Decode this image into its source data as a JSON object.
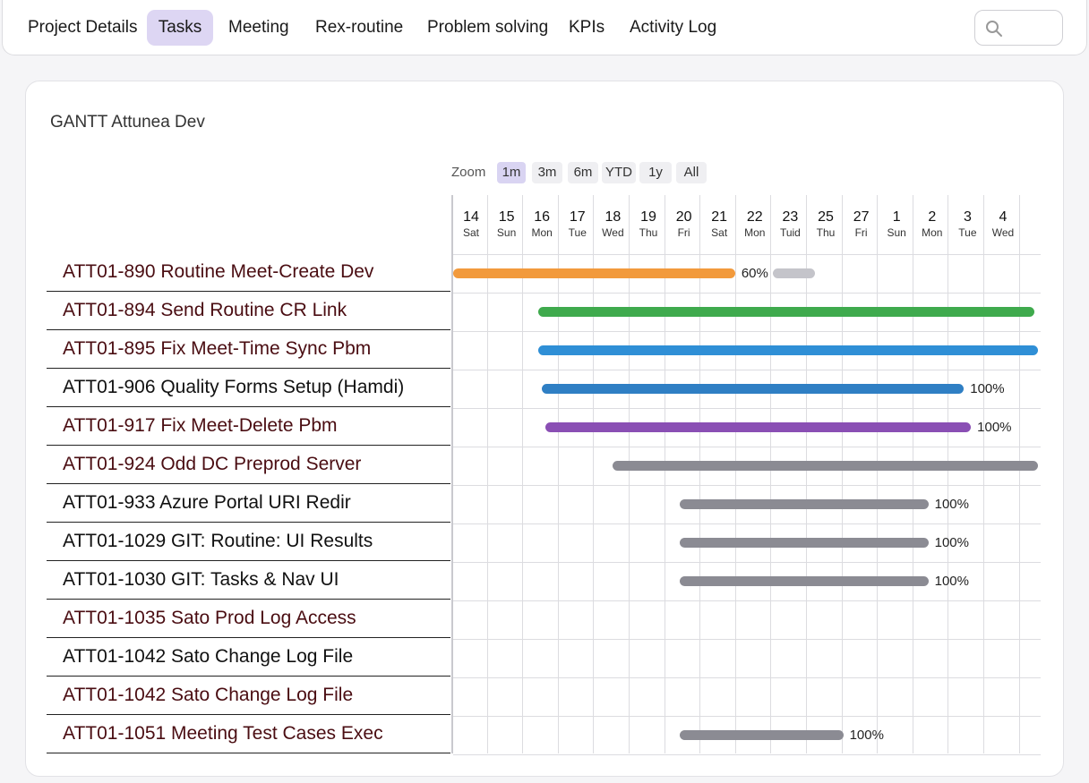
{
  "nav": {
    "tabs": [
      {
        "label": "Project Details",
        "active": false
      },
      {
        "label": "Tasks",
        "active": true
      },
      {
        "label": "Meeting",
        "active": false
      },
      {
        "label": "Rex-routine",
        "active": false
      },
      {
        "label": "Problem solving",
        "active": false
      },
      {
        "label": "KPIs",
        "active": false
      },
      {
        "label": "Activity Log",
        "active": false
      }
    ],
    "search": {
      "icon": "search-icon",
      "value": ""
    }
  },
  "gantt": {
    "title": "GANTT Attunea Dev",
    "zoom": {
      "label": "Zoom",
      "options": [
        "1m",
        "3m",
        "6m",
        "YTD",
        "1y",
        "All"
      ],
      "selected": "1m"
    },
    "days": [
      {
        "num": "14",
        "name": "Sat"
      },
      {
        "num": "15",
        "name": "Sun"
      },
      {
        "num": "16",
        "name": "Mon"
      },
      {
        "num": "17",
        "name": "Tue"
      },
      {
        "num": "18",
        "name": "Wed"
      },
      {
        "num": "19",
        "name": "Thu"
      },
      {
        "num": "20",
        "name": "Fri"
      },
      {
        "num": "21",
        "name": "Sat"
      },
      {
        "num": "22",
        "name": "Mon"
      },
      {
        "num": "23",
        "name": "Tuid"
      },
      {
        "num": "25",
        "name": "Thu"
      },
      {
        "num": "27",
        "name": "Fri"
      },
      {
        "num": "1",
        "name": "Sun"
      },
      {
        "num": "2",
        "name": "Mon"
      },
      {
        "num": "3",
        "name": "Tue"
      },
      {
        "num": "4",
        "name": "Wed"
      }
    ],
    "tasks": [
      {
        "label": "ATT01-890 Routine Meet-Create Dev",
        "tone": "maroon",
        "bar": {
          "start_day": 0,
          "end_day": 7.95,
          "color": "#f29a3c",
          "progress_label": "60%",
          "remaining_end_day": 10.2
        }
      },
      {
        "label": "ATT01-894 Send Routine CR Link",
        "tone": "maroon",
        "bar": {
          "start_day": 2.4,
          "end_day": 16.4,
          "color": "#3faa4d",
          "progress_label": ""
        }
      },
      {
        "label": "ATT01-895 Fix Meet-Time Sync Pbm",
        "tone": "maroon",
        "bar": {
          "start_day": 2.4,
          "end_day": 16.5,
          "color": "#2f8fd6",
          "progress_label": ""
        }
      },
      {
        "label": "ATT01-906 Quality Forms Setup (Hamdi)",
        "tone": "dark",
        "bar": {
          "start_day": 2.5,
          "end_day": 14.4,
          "color": "#2f7fc4",
          "progress_label": "100%"
        }
      },
      {
        "label": "ATT01-917 Fix Meet-Delete Pbm",
        "tone": "maroon",
        "bar": {
          "start_day": 2.6,
          "end_day": 14.6,
          "color": "#8a4fb4",
          "progress_label": "100%"
        }
      },
      {
        "label": "ATT01-924 Odd DC Preprod Server",
        "tone": "maroon",
        "bar": {
          "start_day": 4.5,
          "end_day": 16.5,
          "color": "#8b8b93",
          "progress_label": ""
        }
      },
      {
        "label": "ATT01-933 Azure Portal URI Redir",
        "tone": "dark",
        "bar": {
          "start_day": 6.4,
          "end_day": 13.4,
          "color": "#8b8b93",
          "progress_label": "100%"
        }
      },
      {
        "label": "ATT01-1029 GIT: Routine: UI Results",
        "tone": "dark",
        "bar": {
          "start_day": 6.4,
          "end_day": 13.4,
          "color": "#8b8b93",
          "progress_label": "100%"
        }
      },
      {
        "label": "ATT01-1030 GIT: Tasks & Nav UI",
        "tone": "dark",
        "bar": {
          "start_day": 6.4,
          "end_day": 13.4,
          "color": "#8b8b93",
          "progress_label": "100%"
        }
      },
      {
        "label": "ATT01-1035 Sato Prod Log Access",
        "tone": "maroon",
        "bar": null
      },
      {
        "label": "ATT01-1042 Sato Change Log File",
        "tone": "dark",
        "bar": null
      },
      {
        "label": "ATT01-1042 Sato Change Log File",
        "tone": "maroon",
        "bar": null
      },
      {
        "label": "ATT01-1051 Meeting Test Cases Exec",
        "tone": "maroon",
        "bar": {
          "start_day": 6.4,
          "end_day": 11.0,
          "color": "#8b8b93",
          "progress_label": "100%"
        }
      }
    ]
  }
}
